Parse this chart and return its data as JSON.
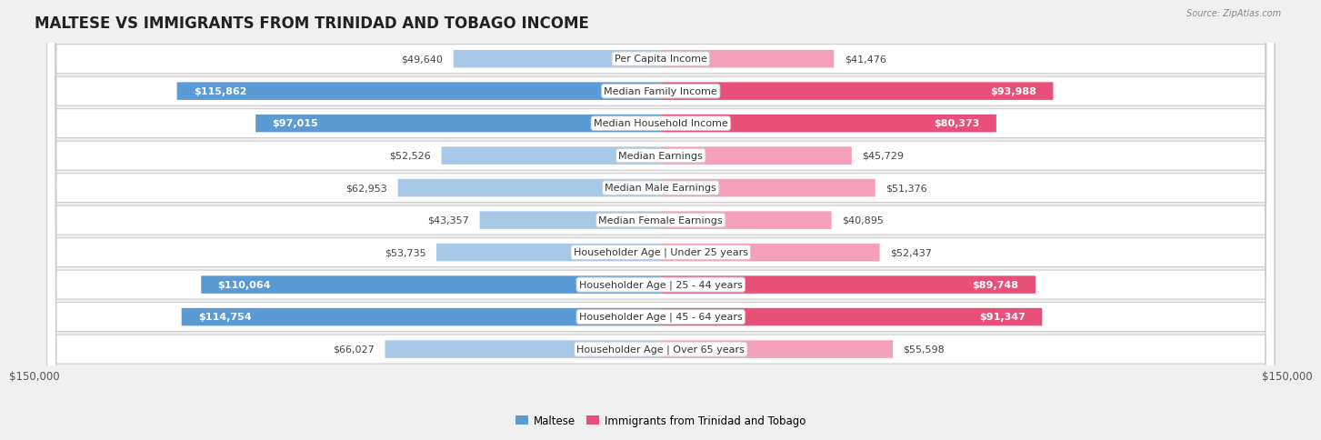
{
  "title": "MALTESE VS IMMIGRANTS FROM TRINIDAD AND TOBAGO INCOME",
  "source": "Source: ZipAtlas.com",
  "categories": [
    "Per Capita Income",
    "Median Family Income",
    "Median Household Income",
    "Median Earnings",
    "Median Male Earnings",
    "Median Female Earnings",
    "Householder Age | Under 25 years",
    "Householder Age | 25 - 44 years",
    "Householder Age | 45 - 64 years",
    "Householder Age | Over 65 years"
  ],
  "left_values": [
    49640,
    115862,
    97015,
    52526,
    62953,
    43357,
    53735,
    110064,
    114754,
    66027
  ],
  "right_values": [
    41476,
    93988,
    80373,
    45729,
    51376,
    40895,
    52437,
    89748,
    91347,
    55598
  ],
  "left_labels": [
    "$49,640",
    "$115,862",
    "$97,015",
    "$52,526",
    "$62,953",
    "$43,357",
    "$53,735",
    "$110,064",
    "$114,754",
    "$66,027"
  ],
  "right_labels": [
    "$41,476",
    "$93,988",
    "$80,373",
    "$45,729",
    "$51,376",
    "$40,895",
    "$52,437",
    "$89,748",
    "$91,347",
    "$55,598"
  ],
  "max_value": 150000,
  "left_color_light": "#a8c8e8",
  "left_color_dark": "#5b9bd5",
  "right_color_light": "#f4a0b8",
  "right_color_dark": "#e8507a",
  "background_color": "#f0f0f0",
  "row_bg_color": "#ffffff",
  "legend_left": "Maltese",
  "legend_right": "Immigrants from Trinidad and Tobago",
  "inside_threshold": 75000,
  "title_fontsize": 12,
  "label_fontsize": 8,
  "category_fontsize": 8
}
